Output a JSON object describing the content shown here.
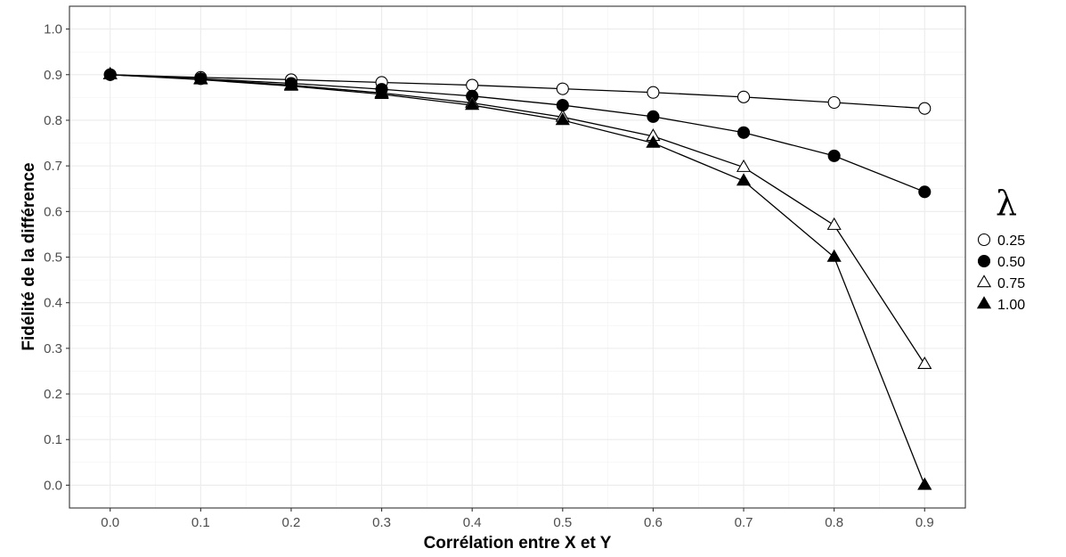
{
  "chart_data": {
    "type": "line",
    "xlabel": "Corrélation entre X et Y",
    "ylabel": "Fidélité de la différence",
    "x": [
      0.0,
      0.1,
      0.2,
      0.3,
      0.4,
      0.5,
      0.6,
      0.7,
      0.8,
      0.9
    ],
    "x_tick_labels": [
      "0.0",
      "0.1",
      "0.2",
      "0.3",
      "0.4",
      "0.5",
      "0.6",
      "0.7",
      "0.8",
      "0.9"
    ],
    "y_tick_labels": [
      "0.0",
      "0.1",
      "0.2",
      "0.3",
      "0.4",
      "0.5",
      "0.6",
      "0.7",
      "0.8",
      "0.9",
      "1.0"
    ],
    "xlim": [
      -0.045,
      0.945
    ],
    "ylim": [
      -0.05,
      1.05
    ],
    "grid": true,
    "legend": {
      "title": "λ",
      "placement": "right"
    },
    "series": [
      {
        "name": "0.25",
        "marker": "circle-open",
        "values": [
          0.9,
          0.894,
          0.889,
          0.883,
          0.877,
          0.869,
          0.861,
          0.851,
          0.839,
          0.826
        ]
      },
      {
        "name": "0.50",
        "marker": "circle-filled",
        "values": [
          0.9,
          0.891,
          0.881,
          0.868,
          0.853,
          0.833,
          0.808,
          0.773,
          0.722,
          0.643
        ]
      },
      {
        "name": "0.75",
        "marker": "triangle-open",
        "values": [
          0.9,
          0.89,
          0.877,
          0.86,
          0.838,
          0.807,
          0.765,
          0.697,
          0.57,
          0.265
        ]
      },
      {
        "name": "1.00",
        "marker": "triangle-filled",
        "values": [
          0.9,
          0.889,
          0.875,
          0.857,
          0.833,
          0.8,
          0.75,
          0.667,
          0.5,
          0.0
        ]
      }
    ]
  }
}
